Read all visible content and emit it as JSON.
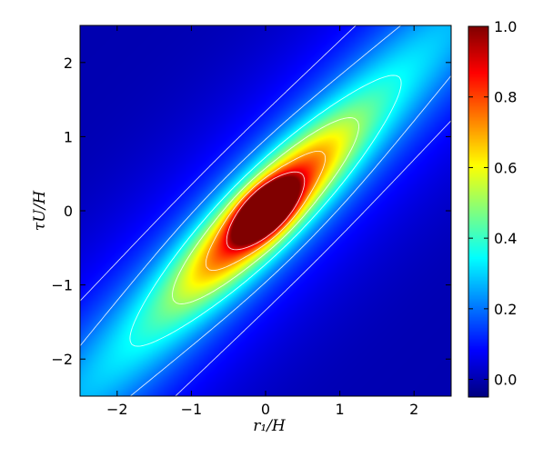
{
  "chart_data": {
    "type": "heatmap",
    "title": "",
    "xlabel": "r₁/H",
    "ylabel": "τU/H",
    "xlim": [
      -2.5,
      2.5
    ],
    "ylim": [
      -2.5,
      2.5
    ],
    "x_ticks": [
      -2,
      -1,
      0,
      1,
      2
    ],
    "x_tick_labels": [
      "−2",
      "−1",
      "0",
      "1",
      "2"
    ],
    "y_ticks": [
      -2,
      -1,
      0,
      1,
      2
    ],
    "y_tick_labels": [
      "−2",
      "−1",
      "0",
      "1",
      "2"
    ],
    "colormap": "jet",
    "color_range": [
      -0.05,
      1.0
    ],
    "colorbar_ticks": [
      0.0,
      0.2,
      0.4,
      0.6,
      0.8,
      1.0
    ],
    "colorbar_tick_labels": [
      "0.0",
      "0.2",
      "0.4",
      "0.6",
      "0.8",
      "1.0"
    ],
    "peak": {
      "x": 0.0,
      "y": 0.0,
      "value": 1.0
    },
    "ridge_line": "y = x",
    "contour_levels": [
      0.1,
      0.2,
      0.35,
      0.5,
      0.7,
      0.9
    ],
    "contour_color": "#ffffff",
    "grid": false
  }
}
